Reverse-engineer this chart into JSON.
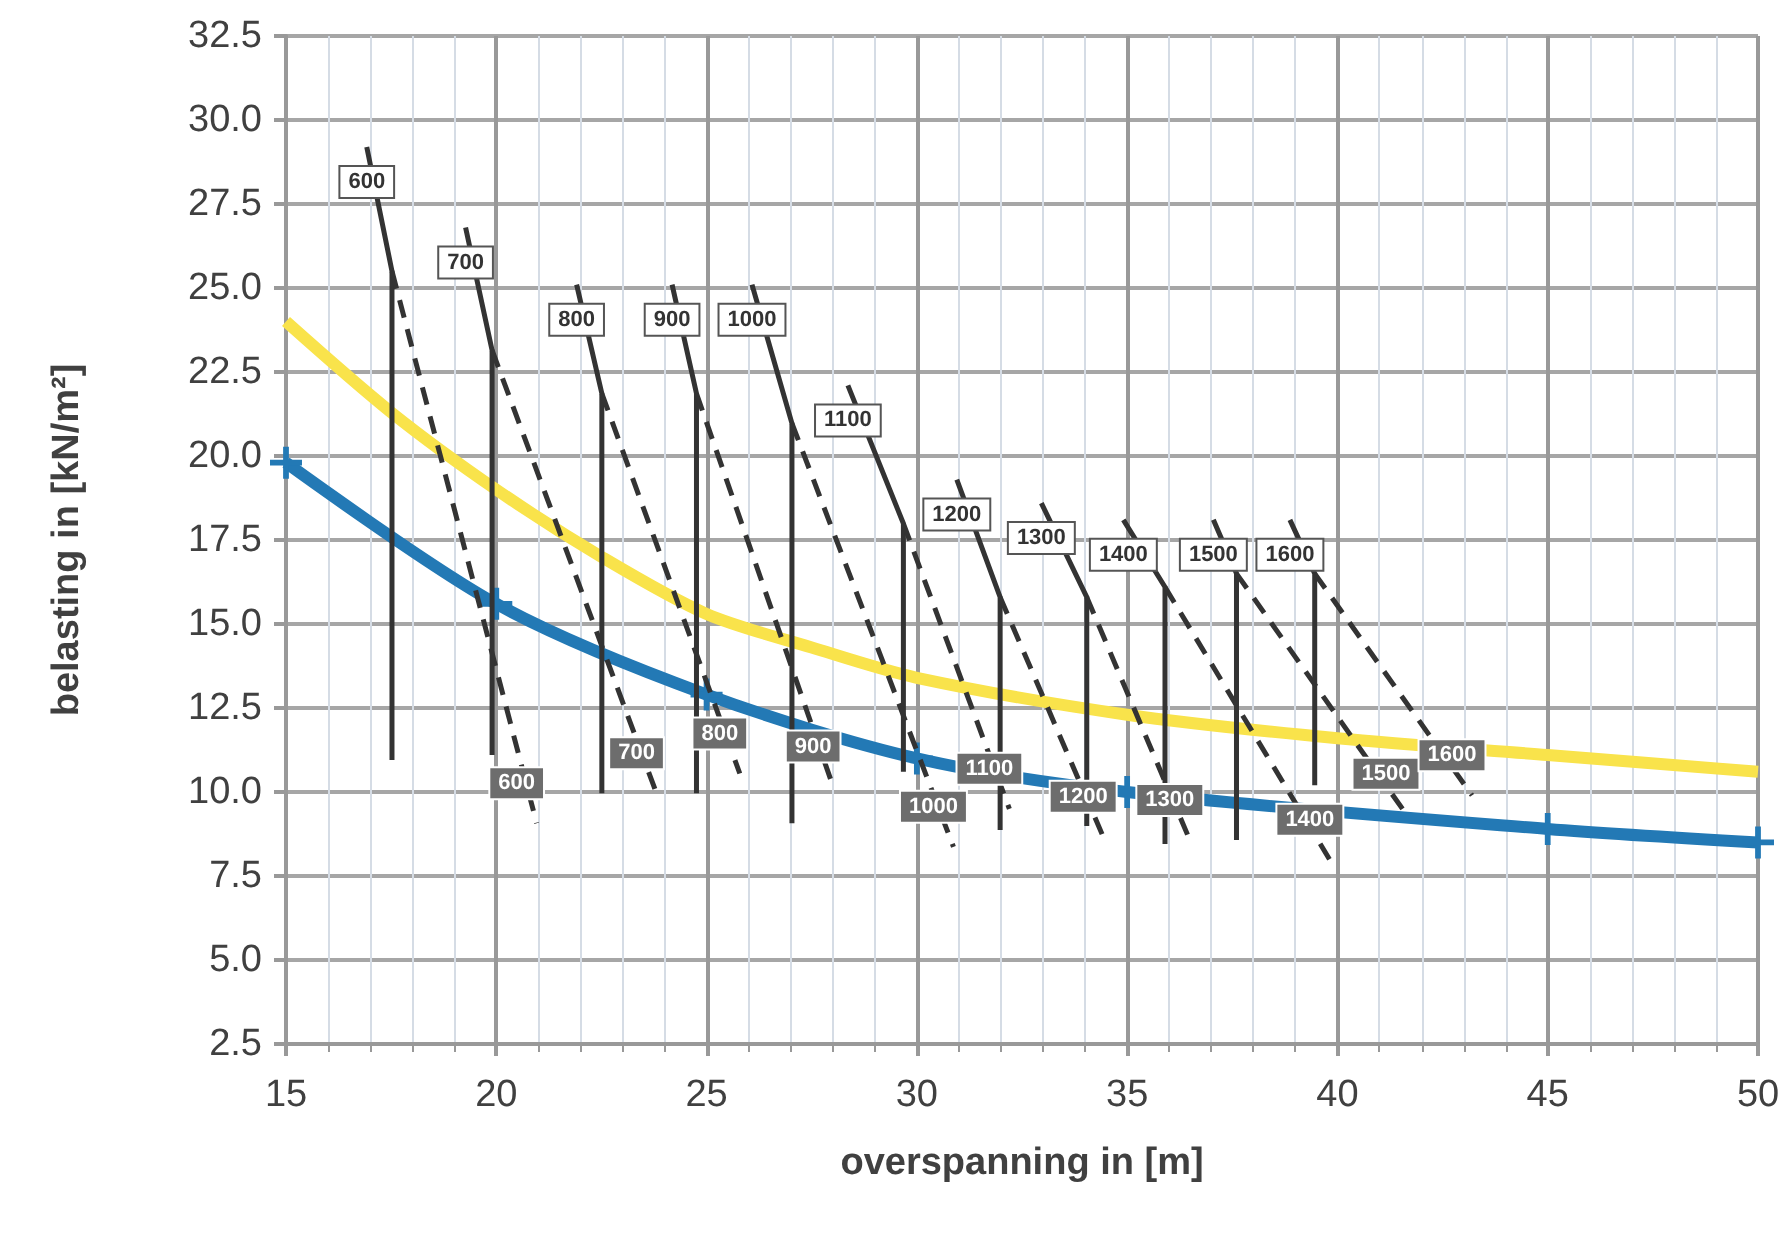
{
  "chart_data": {
    "type": "line",
    "xlabel": "overspanning in [m]",
    "ylabel": "belasting in [kN/m²]",
    "xlim": [
      15,
      50
    ],
    "xticks": [
      15,
      20,
      25,
      30,
      35,
      40,
      45,
      50
    ],
    "ylim": [
      2.5,
      32.5
    ],
    "yticks": [
      2.5,
      {
        "value": 5,
        "label": "5.0"
      },
      7.5,
      {
        "value": 10,
        "label": "10.0"
      },
      12.5,
      {
        "value": 15,
        "label": "15.0"
      },
      17.5,
      {
        "value": 20,
        "label": "20.0"
      },
      22.5,
      {
        "value": 25,
        "label": "25.0"
      },
      27.5,
      {
        "value": 30,
        "label": "30.0"
      },
      32.5
    ],
    "grid": true,
    "legend": false,
    "series": [
      {
        "color": "#f9e34b",
        "marker": "none",
        "line_style": "solid",
        "x": [
          15,
          17.5,
          20,
          22.5,
          25,
          27.5,
          30,
          35,
          40,
          45,
          50
        ],
        "values": [
          24.0,
          21.3,
          19.0,
          17.0,
          15.3,
          14.3,
          13.4,
          12.3,
          11.6,
          11.1,
          10.6
        ]
      },
      {
        "color": "#2379b5",
        "marker": "cross",
        "line_style": "solid",
        "x": [
          15,
          20,
          25,
          30,
          35,
          45,
          50
        ],
        "values": [
          19.8,
          15.6,
          12.9,
          11.0,
          10.0,
          8.9,
          8.5
        ]
      },
      {
        "name": "600",
        "color": "#333333",
        "marker": "none",
        "line_style": "solid",
        "x": [
          16.92,
          17.52,
          17.52
        ],
        "values": [
          29.2,
          25.5,
          10.95
        ]
      },
      {
        "name": "600",
        "color": "#333333",
        "marker": "none",
        "line_style": "dashed",
        "x": [
          17.52,
          20.96
        ],
        "values": [
          25.5,
          9.07
        ]
      },
      {
        "name": "700",
        "color": "#333333",
        "marker": "none",
        "line_style": "solid",
        "x": [
          19.27,
          19.9,
          19.9
        ],
        "values": [
          26.8,
          23.15,
          11.1
        ]
      },
      {
        "name": "700",
        "color": "#333333",
        "marker": "none",
        "line_style": "dashed",
        "x": [
          19.9,
          23.81
        ],
        "values": [
          23.15,
          9.96
        ]
      },
      {
        "name": "800",
        "color": "#333333",
        "marker": "none",
        "line_style": "solid",
        "x": [
          21.91,
          22.51,
          22.51
        ],
        "values": [
          25.1,
          21.86,
          9.96
        ]
      },
      {
        "name": "800",
        "color": "#333333",
        "marker": "none",
        "line_style": "dashed",
        "x": [
          22.51,
          25.79
        ],
        "values": [
          21.86,
          10.55
        ]
      },
      {
        "name": "900",
        "color": "#333333",
        "marker": "none",
        "line_style": "solid",
        "x": [
          24.18,
          24.76,
          24.76
        ],
        "values": [
          25.1,
          21.86,
          9.96
        ]
      },
      {
        "name": "900",
        "color": "#333333",
        "marker": "none",
        "line_style": "dashed",
        "x": [
          24.76,
          28.01
        ],
        "values": [
          21.86,
          10.16
        ]
      },
      {
        "name": "1000",
        "color": "#333333",
        "marker": "none",
        "line_style": "solid",
        "x": [
          26.08,
          27.03,
          27.03
        ],
        "values": [
          25.1,
          20.97,
          9.07
        ]
      },
      {
        "name": "1000",
        "color": "#333333",
        "marker": "none",
        "line_style": "dashed",
        "x": [
          27.03,
          30.87
        ],
        "values": [
          20.97,
          8.37
        ]
      },
      {
        "name": "1100",
        "color": "#333333",
        "marker": "none",
        "line_style": "solid",
        "x": [
          28.36,
          29.68,
          29.68
        ],
        "values": [
          22.1,
          17.99,
          10.6
        ]
      },
      {
        "name": "1100",
        "color": "#333333",
        "marker": "none",
        "line_style": "dashed",
        "x": [
          29.68,
          32.2
        ],
        "values": [
          17.99,
          9.5
        ]
      },
      {
        "name": "1200",
        "color": "#333333",
        "marker": "none",
        "line_style": "solid",
        "x": [
          30.95,
          31.98,
          31.98
        ],
        "values": [
          19.3,
          15.8,
          8.87
        ]
      },
      {
        "name": "1200",
        "color": "#333333",
        "marker": "none",
        "line_style": "dashed",
        "x": [
          31.98,
          34.43
        ],
        "values": [
          15.8,
          8.67
        ]
      },
      {
        "name": "1300",
        "color": "#333333",
        "marker": "none",
        "line_style": "solid",
        "x": [
          32.96,
          34.04,
          34.04
        ],
        "values": [
          18.6,
          15.8,
          8.99
        ]
      },
      {
        "name": "1300",
        "color": "#333333",
        "marker": "none",
        "line_style": "dashed",
        "x": [
          34.04,
          36.49
        ],
        "values": [
          15.8,
          8.57
        ]
      },
      {
        "name": "1400",
        "color": "#333333",
        "marker": "none",
        "line_style": "solid",
        "x": [
          34.91,
          35.9,
          35.9
        ],
        "values": [
          18.1,
          16.1,
          8.45
        ]
      },
      {
        "name": "1400",
        "color": "#333333",
        "marker": "none",
        "line_style": "dashed",
        "x": [
          35.9,
          39.82
        ],
        "values": [
          16.1,
          7.98
        ]
      },
      {
        "name": "1500",
        "color": "#333333",
        "marker": "none",
        "line_style": "solid",
        "x": [
          37.05,
          37.6,
          37.6
        ],
        "values": [
          18.1,
          16.5,
          8.57
        ]
      },
      {
        "name": "1500",
        "color": "#333333",
        "marker": "none",
        "line_style": "dashed",
        "x": [
          37.6,
          41.63
        ],
        "values": [
          16.5,
          9.35
        ]
      },
      {
        "name": "1600",
        "color": "#333333",
        "marker": "none",
        "line_style": "solid",
        "x": [
          38.87,
          39.46,
          39.46
        ],
        "values": [
          18.1,
          16.5,
          10.2
        ]
      },
      {
        "name": "1600",
        "color": "#333333",
        "marker": "none",
        "line_style": "dashed",
        "x": [
          39.46,
          43.2
        ],
        "values": [
          16.5,
          9.9
        ]
      }
    ]
  }
}
